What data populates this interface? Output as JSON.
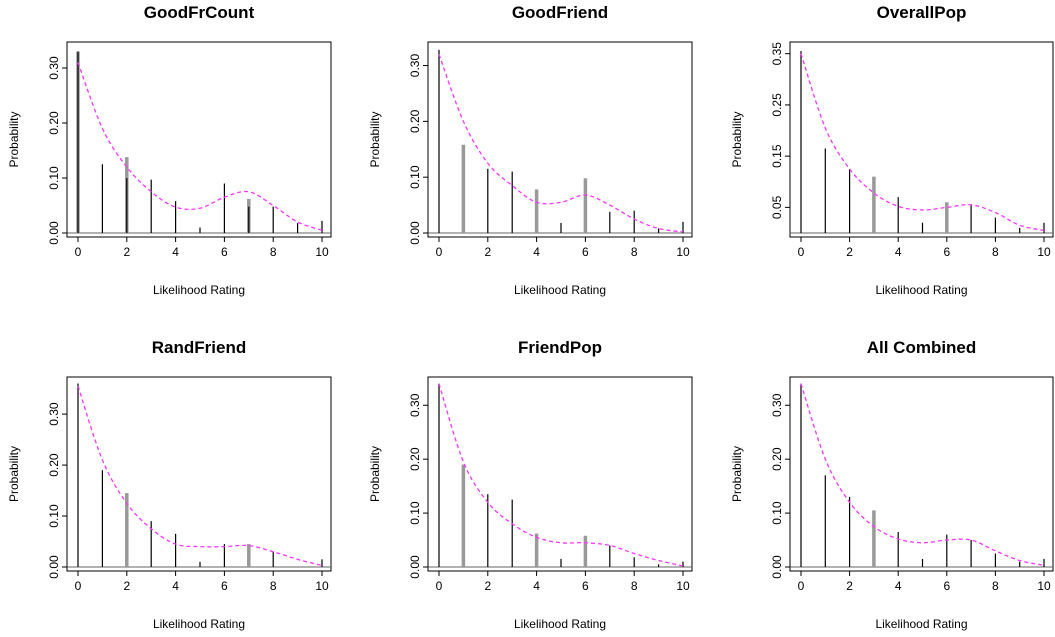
{
  "colors": {
    "density": "#ff33ff",
    "bar_dark": "#000000",
    "bar_light": "#999999",
    "axis": "#000000"
  },
  "chart_data": [
    {
      "type": "bar",
      "title": "GoodFrCount",
      "xlabel": "Likelihood Rating",
      "ylabel": "Probability",
      "x": [
        0,
        1,
        2,
        3,
        4,
        5,
        6,
        7,
        8,
        9,
        10
      ],
      "xticks": [
        "0",
        "2",
        "4",
        "6",
        "8",
        "10"
      ],
      "yticks": [
        "0.00",
        "0.10",
        "0.20",
        "0.30"
      ],
      "ylim": [
        0,
        0.34
      ],
      "series": [
        {
          "values": [
            0.33,
            0.125,
            0.1,
            0.097,
            0.058,
            0.01,
            0.09,
            0.048,
            0.048,
            0.018,
            0.022
          ]
        },
        {
          "values": [
            0.33,
            0.0,
            0.138,
            0.0,
            0.0,
            0.0,
            0.0,
            0.062,
            0.0,
            0.0,
            0.0
          ]
        },
        {
          "values": [
            0.31,
            0.19,
            0.12,
            0.075,
            0.047,
            0.045,
            0.065,
            0.075,
            0.05,
            0.02,
            0.005
          ]
        }
      ],
      "grid": false
    },
    {
      "type": "bar",
      "title": "GoodFriend",
      "xlabel": "Likelihood Rating",
      "ylabel": "Probability",
      "x": [
        0,
        1,
        2,
        3,
        4,
        5,
        6,
        7,
        8,
        9,
        10
      ],
      "xticks": [
        "0",
        "2",
        "4",
        "6",
        "8",
        "10"
      ],
      "yticks": [
        "0.00",
        "0.10",
        "0.20",
        "0.30"
      ],
      "ylim": [
        0,
        0.335
      ],
      "series": [
        {
          "values": [
            0.328,
            0.0,
            0.115,
            0.11,
            0.0,
            0.018,
            0.0,
            0.038,
            0.04,
            0.008,
            0.02
          ]
        },
        {
          "values": [
            0.0,
            0.158,
            0.0,
            0.0,
            0.078,
            0.0,
            0.098,
            0.0,
            0.0,
            0.0,
            0.0
          ]
        },
        {
          "values": [
            0.32,
            0.2,
            0.125,
            0.085,
            0.055,
            0.055,
            0.068,
            0.05,
            0.025,
            0.008,
            0.002
          ]
        }
      ],
      "grid": false
    },
    {
      "type": "bar",
      "title": "OverallPop",
      "xlabel": "Likelihood Rating",
      "ylabel": "Probability",
      "x": [
        0,
        1,
        2,
        3,
        4,
        5,
        6,
        7,
        8,
        9,
        10
      ],
      "xticks": [
        "0",
        "2",
        "4",
        "6",
        "8",
        "10"
      ],
      "yticks": [
        "0.05",
        "0.15",
        "0.25",
        "0.35"
      ],
      "ylim": [
        0,
        0.365
      ],
      "series": [
        {
          "values": [
            0.355,
            0.165,
            0.125,
            0.0,
            0.07,
            0.02,
            0.0,
            0.055,
            0.03,
            0.01,
            0.02
          ]
        },
        {
          "values": [
            0.0,
            0.0,
            0.0,
            0.11,
            0.0,
            0.0,
            0.06,
            0.0,
            0.0,
            0.0,
            0.0
          ]
        },
        {
          "values": [
            0.35,
            0.205,
            0.125,
            0.078,
            0.052,
            0.045,
            0.05,
            0.055,
            0.04,
            0.015,
            0.005
          ]
        }
      ],
      "grid": false
    },
    {
      "type": "bar",
      "title": "RandFriend",
      "xlabel": "Likelihood Rating",
      "ylabel": "Probability",
      "x": [
        0,
        1,
        2,
        3,
        4,
        5,
        6,
        7,
        8,
        9,
        10
      ],
      "xticks": [
        "0",
        "2",
        "4",
        "6",
        "8",
        "10"
      ],
      "yticks": [
        "0.00",
        "0.10",
        "0.20",
        "0.30"
      ],
      "ylim": [
        0,
        0.365
      ],
      "series": [
        {
          "values": [
            0.36,
            0.19,
            0.0,
            0.09,
            0.065,
            0.01,
            0.045,
            0.0,
            0.03,
            0.0,
            0.015
          ]
        },
        {
          "values": [
            0.0,
            0.0,
            0.145,
            0.0,
            0.0,
            0.0,
            0.0,
            0.045,
            0.0,
            0.0,
            0.0
          ]
        },
        {
          "values": [
            0.355,
            0.21,
            0.125,
            0.075,
            0.045,
            0.04,
            0.04,
            0.042,
            0.03,
            0.015,
            0.003
          ]
        }
      ],
      "grid": false
    },
    {
      "type": "bar",
      "title": "FriendPop",
      "xlabel": "Likelihood Rating",
      "ylabel": "Probability",
      "x": [
        0,
        1,
        2,
        3,
        4,
        5,
        6,
        7,
        8,
        9,
        10
      ],
      "xticks": [
        "0",
        "2",
        "4",
        "6",
        "8",
        "10"
      ],
      "yticks": [
        "0.00",
        "0.10",
        "0.20",
        "0.30"
      ],
      "ylim": [
        0,
        0.345
      ],
      "series": [
        {
          "values": [
            0.34,
            0.0,
            0.135,
            0.125,
            0.0,
            0.015,
            0.0,
            0.04,
            0.018,
            0.005,
            0.01
          ]
        },
        {
          "values": [
            0.0,
            0.19,
            0.0,
            0.0,
            0.062,
            0.0,
            0.058,
            0.0,
            0.0,
            0.0,
            0.0
          ]
        },
        {
          "values": [
            0.34,
            0.195,
            0.12,
            0.08,
            0.055,
            0.045,
            0.045,
            0.04,
            0.025,
            0.012,
            0.002
          ]
        }
      ],
      "grid": false
    },
    {
      "type": "bar",
      "title": "All Combined",
      "xlabel": "Likelihood Rating",
      "ylabel": "Probability",
      "x": [
        0,
        1,
        2,
        3,
        4,
        5,
        6,
        7,
        8,
        9,
        10
      ],
      "xticks": [
        "0",
        "2",
        "4",
        "6",
        "8",
        "10"
      ],
      "yticks": [
        "0.00",
        "0.10",
        "0.20",
        "0.30"
      ],
      "ylim": [
        0,
        0.345
      ],
      "series": [
        {
          "values": [
            0.34,
            0.17,
            0.13,
            0.0,
            0.065,
            0.015,
            0.06,
            0.05,
            0.025,
            0.01,
            0.015
          ]
        },
        {
          "values": [
            0.0,
            0.0,
            0.0,
            0.105,
            0.0,
            0.0,
            0.0,
            0.0,
            0.0,
            0.0,
            0.0
          ]
        },
        {
          "values": [
            0.34,
            0.2,
            0.12,
            0.075,
            0.052,
            0.045,
            0.05,
            0.05,
            0.03,
            0.012,
            0.003
          ]
        }
      ],
      "grid": false
    }
  ]
}
